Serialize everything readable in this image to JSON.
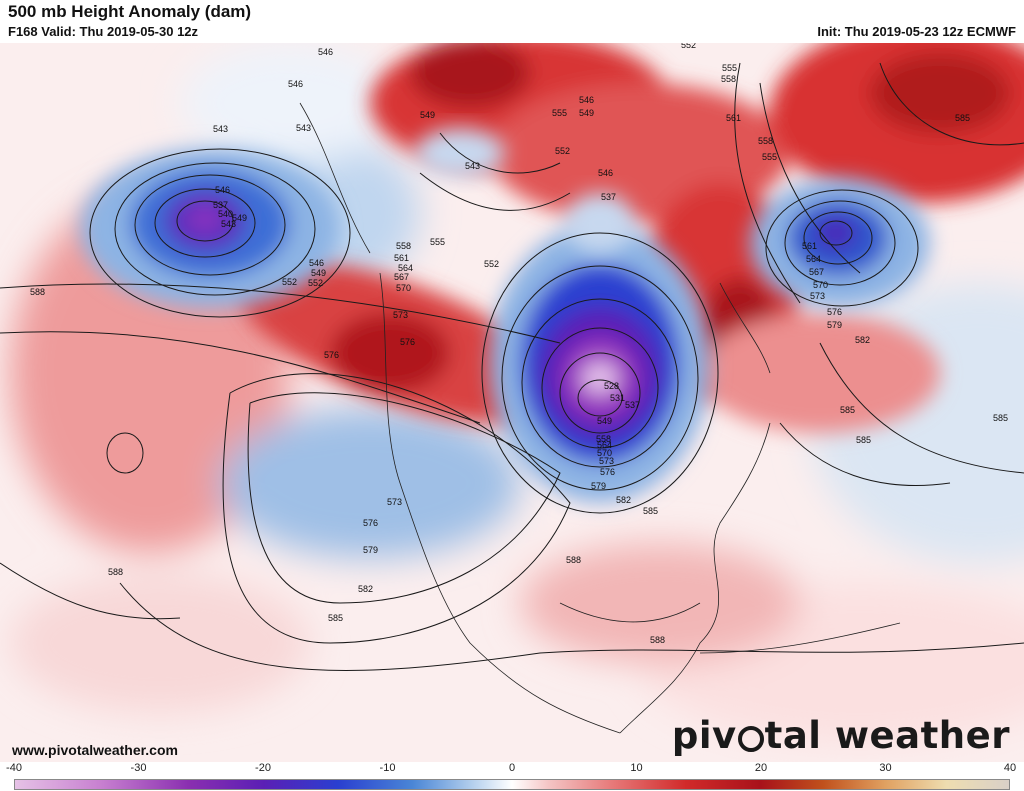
{
  "header": {
    "title": "500 mb Height Anomaly (dam)",
    "valid": "F168 Valid: Thu 2019-05-30 12z",
    "init": "Init: Thu 2019-05-23 12z ECMWF"
  },
  "footer": {
    "url": "www.pivotalweather.com",
    "brand_left": "piv",
    "brand_right": "tal weather"
  },
  "colorbar": {
    "ticks": [
      "-40",
      "-30",
      "-20",
      "-10",
      "0",
      "10",
      "20",
      "30",
      "40"
    ],
    "range": [
      -40,
      40
    ],
    "stops": [
      {
        "v": -40,
        "c": "#e6c2e6"
      },
      {
        "v": -33,
        "c": "#c77fd0"
      },
      {
        "v": -26,
        "c": "#8a2fb0"
      },
      {
        "v": -20,
        "c": "#5b1fb5"
      },
      {
        "v": -14,
        "c": "#2a3fd0"
      },
      {
        "v": -8,
        "c": "#4a86d6"
      },
      {
        "v": -3,
        "c": "#b8d2ee"
      },
      {
        "v": 0,
        "c": "#ffffff"
      },
      {
        "v": 3,
        "c": "#f4c4c4"
      },
      {
        "v": 8,
        "c": "#e77a7a"
      },
      {
        "v": 14,
        "c": "#d12a2a"
      },
      {
        "v": 20,
        "c": "#a8121a"
      },
      {
        "v": 25,
        "c": "#c0501c"
      },
      {
        "v": 30,
        "c": "#e0a060"
      },
      {
        "v": 35,
        "c": "#eeddb0"
      },
      {
        "v": 40,
        "c": "#d9d0c8"
      }
    ]
  },
  "map": {
    "contour_labels": [
      "543",
      "546",
      "546",
      "549",
      "552",
      "543",
      "546",
      "549",
      "537",
      "540",
      "543",
      "546",
      "549",
      "552",
      "552",
      "555",
      "546",
      "549",
      "555",
      "552",
      "546",
      "543",
      "537",
      "558",
      "561",
      "564",
      "567",
      "570",
      "573",
      "576",
      "576",
      "588",
      "528",
      "531",
      "537",
      "549",
      "558",
      "564",
      "570",
      "573",
      "576",
      "579",
      "582",
      "585",
      "573",
      "576",
      "579",
      "582",
      "585",
      "588",
      "588",
      "588",
      "552",
      "555",
      "558",
      "561",
      "558",
      "555",
      "561",
      "564",
      "567",
      "570",
      "573",
      "576",
      "579",
      "582",
      "585",
      "585",
      "585",
      "585"
    ],
    "anomaly_centers": [
      {
        "name": "gulf-of-alaska-low",
        "sign": "negative",
        "value": -24
      },
      {
        "name": "great-lakes-low",
        "sign": "negative",
        "value": -34
      },
      {
        "name": "north-atlantic-low",
        "sign": "negative",
        "value": -20
      },
      {
        "name": "pacific-northwest-ridge",
        "sign": "positive",
        "value": 20
      },
      {
        "name": "greenland-ridge",
        "sign": "positive",
        "value": 22
      },
      {
        "name": "northeast-canada-ridge",
        "sign": "positive",
        "value": 22
      },
      {
        "name": "north-atlantic-ridge",
        "sign": "positive",
        "value": 16
      },
      {
        "name": "central-pacific-ridge",
        "sign": "positive",
        "value": 10
      },
      {
        "name": "southwest-us-low",
        "sign": "negative",
        "value": -9
      },
      {
        "name": "gulf-of-mexico-ridge",
        "sign": "positive",
        "value": 4
      }
    ]
  }
}
